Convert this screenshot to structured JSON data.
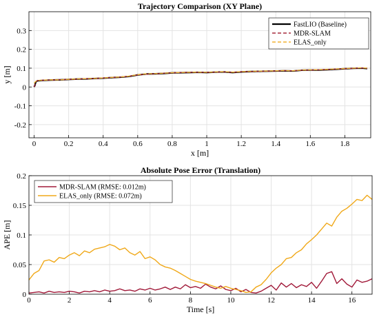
{
  "chart_data": [
    {
      "type": "line",
      "title": "Trajectory Comparison (XY Plane)",
      "xlabel": "x [m]",
      "ylabel": "y [m]",
      "xlim": [
        -0.03,
        1.95
      ],
      "ylim": [
        -0.27,
        0.4
      ],
      "xticks": [
        "0",
        "0.2",
        "0.4",
        "0.6",
        "0.8",
        "1",
        "1.2",
        "1.4",
        "1.6",
        "1.8"
      ],
      "xtick_values": [
        0,
        0.2,
        0.4,
        0.6,
        0.8,
        1.0,
        1.2,
        1.4,
        1.6,
        1.8
      ],
      "yticks": [
        "-0.2",
        "-0.1",
        "0",
        "0.1",
        "0.2",
        "0.3"
      ],
      "ytick_values": [
        -0.2,
        -0.1,
        0,
        0.1,
        0.2,
        0.3
      ],
      "grid": true,
      "legend_position": "top-right",
      "series": [
        {
          "name": "FastLIO (Baseline)",
          "color": "#000000",
          "style": "solid",
          "x": [
            0,
            0.005,
            0.01,
            0.02,
            0.05,
            0.1,
            0.15,
            0.2,
            0.25,
            0.3,
            0.35,
            0.4,
            0.45,
            0.5,
            0.55,
            0.6,
            0.65,
            0.7,
            0.75,
            0.8,
            0.85,
            0.9,
            0.95,
            1.0,
            1.05,
            1.1,
            1.15,
            1.2,
            1.25,
            1.3,
            1.35,
            1.4,
            1.45,
            1.5,
            1.55,
            1.6,
            1.65,
            1.7,
            1.75,
            1.8,
            1.85,
            1.9,
            1.93
          ],
          "y": [
            0.0,
            0.01,
            0.028,
            0.033,
            0.035,
            0.037,
            0.038,
            0.04,
            0.042,
            0.043,
            0.045,
            0.047,
            0.05,
            0.052,
            0.056,
            0.064,
            0.069,
            0.07,
            0.072,
            0.075,
            0.076,
            0.077,
            0.078,
            0.077,
            0.079,
            0.08,
            0.077,
            0.08,
            0.082,
            0.083,
            0.084,
            0.085,
            0.086,
            0.085,
            0.089,
            0.09,
            0.09,
            0.092,
            0.094,
            0.097,
            0.099,
            0.1,
            0.098
          ]
        },
        {
          "name": "MDR-SLAM",
          "color": "#a52a3c",
          "style": "dashed",
          "x": [
            0,
            0.005,
            0.01,
            0.02,
            0.05,
            0.1,
            0.15,
            0.2,
            0.25,
            0.3,
            0.35,
            0.4,
            0.45,
            0.5,
            0.55,
            0.6,
            0.65,
            0.7,
            0.75,
            0.8,
            0.85,
            0.9,
            0.95,
            1.0,
            1.05,
            1.1,
            1.15,
            1.2,
            1.25,
            1.3,
            1.35,
            1.4,
            1.45,
            1.5,
            1.55,
            1.6,
            1.65,
            1.7,
            1.75,
            1.8,
            1.85,
            1.9,
            1.93
          ],
          "y": [
            0.0,
            0.012,
            0.029,
            0.034,
            0.036,
            0.037,
            0.039,
            0.04,
            0.042,
            0.044,
            0.045,
            0.048,
            0.05,
            0.053,
            0.057,
            0.064,
            0.068,
            0.07,
            0.073,
            0.075,
            0.077,
            0.078,
            0.078,
            0.078,
            0.079,
            0.08,
            0.078,
            0.081,
            0.082,
            0.083,
            0.084,
            0.085,
            0.087,
            0.086,
            0.089,
            0.09,
            0.091,
            0.093,
            0.095,
            0.097,
            0.099,
            0.101,
            0.099
          ]
        },
        {
          "name": "ELAS_only",
          "color": "#f0b030",
          "style": "dashed",
          "x": [
            0,
            0.005,
            0.01,
            0.02,
            0.05,
            0.1,
            0.15,
            0.2,
            0.25,
            0.3,
            0.35,
            0.4,
            0.45,
            0.5,
            0.55,
            0.6,
            0.65,
            0.7,
            0.75,
            0.8,
            0.85,
            0.9,
            0.95,
            1.0,
            1.05,
            1.1,
            1.15,
            1.2,
            1.25,
            1.3,
            1.35,
            1.4,
            1.45,
            1.5,
            1.55,
            1.6,
            1.65,
            1.7,
            1.75,
            1.8,
            1.85,
            1.9,
            1.94
          ],
          "y": [
            0.02,
            0.025,
            0.03,
            0.035,
            0.036,
            0.038,
            0.038,
            0.041,
            0.043,
            0.044,
            0.046,
            0.048,
            0.051,
            0.053,
            0.058,
            0.065,
            0.07,
            0.071,
            0.073,
            0.076,
            0.077,
            0.078,
            0.079,
            0.078,
            0.08,
            0.081,
            0.079,
            0.081,
            0.083,
            0.084,
            0.085,
            0.086,
            0.087,
            0.086,
            0.09,
            0.091,
            0.092,
            0.094,
            0.096,
            0.098,
            0.1,
            0.102,
            0.1
          ]
        }
      ]
    },
    {
      "type": "line",
      "title": "Absolute Pose Error (Translation)",
      "xlabel": "Time [s]",
      "ylabel": "APE [m]",
      "xlim": [
        0,
        17
      ],
      "ylim": [
        0,
        0.2
      ],
      "xticks": [
        "0",
        "2",
        "4",
        "6",
        "8",
        "10",
        "12",
        "14",
        "16"
      ],
      "xtick_values": [
        0,
        2,
        4,
        6,
        8,
        10,
        12,
        14,
        16
      ],
      "yticks": [
        "0",
        "0.05",
        "0.1",
        "0.15",
        "0.2"
      ],
      "ytick_values": [
        0,
        0.05,
        0.1,
        0.15,
        0.2
      ],
      "grid": true,
      "legend_position": "top-left",
      "series": [
        {
          "name": "MDR-SLAM (RMSE: 0.012m)",
          "color": "#a01838",
          "style": "solid",
          "x": [
            0,
            0.25,
            0.5,
            0.75,
            1.0,
            1.25,
            1.5,
            1.75,
            2.0,
            2.25,
            2.5,
            2.75,
            3.0,
            3.25,
            3.5,
            3.75,
            4.0,
            4.25,
            4.5,
            4.75,
            5.0,
            5.25,
            5.5,
            5.75,
            6.0,
            6.25,
            6.5,
            6.75,
            7.0,
            7.25,
            7.5,
            7.75,
            8.0,
            8.25,
            8.5,
            8.75,
            9.0,
            9.25,
            9.5,
            9.75,
            10.0,
            10.25,
            10.5,
            10.75,
            11.0,
            11.25,
            11.5,
            11.75,
            12.0,
            12.25,
            12.5,
            12.75,
            13.0,
            13.25,
            13.5,
            13.75,
            14.0,
            14.25,
            14.5,
            14.75,
            15.0,
            15.25,
            15.5,
            15.75,
            16.0,
            16.25,
            16.5,
            16.75,
            17.0
          ],
          "y": [
            0.002,
            0.003,
            0.004,
            0.002,
            0.005,
            0.003,
            0.004,
            0.003,
            0.005,
            0.004,
            0.002,
            0.005,
            0.004,
            0.006,
            0.004,
            0.007,
            0.005,
            0.006,
            0.009,
            0.006,
            0.007,
            0.005,
            0.009,
            0.007,
            0.01,
            0.007,
            0.009,
            0.012,
            0.008,
            0.012,
            0.009,
            0.016,
            0.011,
            0.013,
            0.01,
            0.017,
            0.012,
            0.009,
            0.014,
            0.008,
            0.006,
            0.01,
            0.004,
            0.008,
            0.003,
            0.002,
            0.005,
            0.01,
            0.015,
            0.007,
            0.019,
            0.012,
            0.018,
            0.011,
            0.016,
            0.013,
            0.02,
            0.01,
            0.022,
            0.035,
            0.038,
            0.018,
            0.026,
            0.017,
            0.012,
            0.024,
            0.02,
            0.022,
            0.026
          ]
        },
        {
          "name": "ELAS_only (RMSE: 0.072m)",
          "color": "#f0a818",
          "style": "solid",
          "x": [
            0,
            0.25,
            0.5,
            0.75,
            1.0,
            1.25,
            1.5,
            1.75,
            2.0,
            2.25,
            2.5,
            2.75,
            3.0,
            3.25,
            3.5,
            3.75,
            4.0,
            4.25,
            4.5,
            4.75,
            5.0,
            5.25,
            5.5,
            5.75,
            6.0,
            6.25,
            6.5,
            6.75,
            7.0,
            7.25,
            7.5,
            7.75,
            8.0,
            8.25,
            8.5,
            8.75,
            9.0,
            9.25,
            9.5,
            9.75,
            10.0,
            10.25,
            10.5,
            10.75,
            11.0,
            11.25,
            11.5,
            11.75,
            12.0,
            12.25,
            12.5,
            12.75,
            13.0,
            13.25,
            13.5,
            13.75,
            14.0,
            14.25,
            14.5,
            14.75,
            15.0,
            15.25,
            15.5,
            15.75,
            16.0,
            16.25,
            16.5,
            16.75,
            17.0
          ],
          "y": [
            0.024,
            0.035,
            0.04,
            0.056,
            0.058,
            0.054,
            0.062,
            0.06,
            0.066,
            0.07,
            0.065,
            0.073,
            0.07,
            0.076,
            0.078,
            0.08,
            0.084,
            0.081,
            0.075,
            0.078,
            0.07,
            0.066,
            0.072,
            0.06,
            0.063,
            0.058,
            0.05,
            0.046,
            0.044,
            0.04,
            0.035,
            0.03,
            0.025,
            0.022,
            0.02,
            0.018,
            0.015,
            0.012,
            0.01,
            0.013,
            0.01,
            0.008,
            0.006,
            0.003,
            0.004,
            0.012,
            0.016,
            0.025,
            0.036,
            0.044,
            0.05,
            0.06,
            0.062,
            0.07,
            0.075,
            0.085,
            0.092,
            0.1,
            0.11,
            0.12,
            0.115,
            0.13,
            0.14,
            0.145,
            0.152,
            0.16,
            0.158,
            0.167,
            0.16
          ]
        }
      ]
    }
  ]
}
